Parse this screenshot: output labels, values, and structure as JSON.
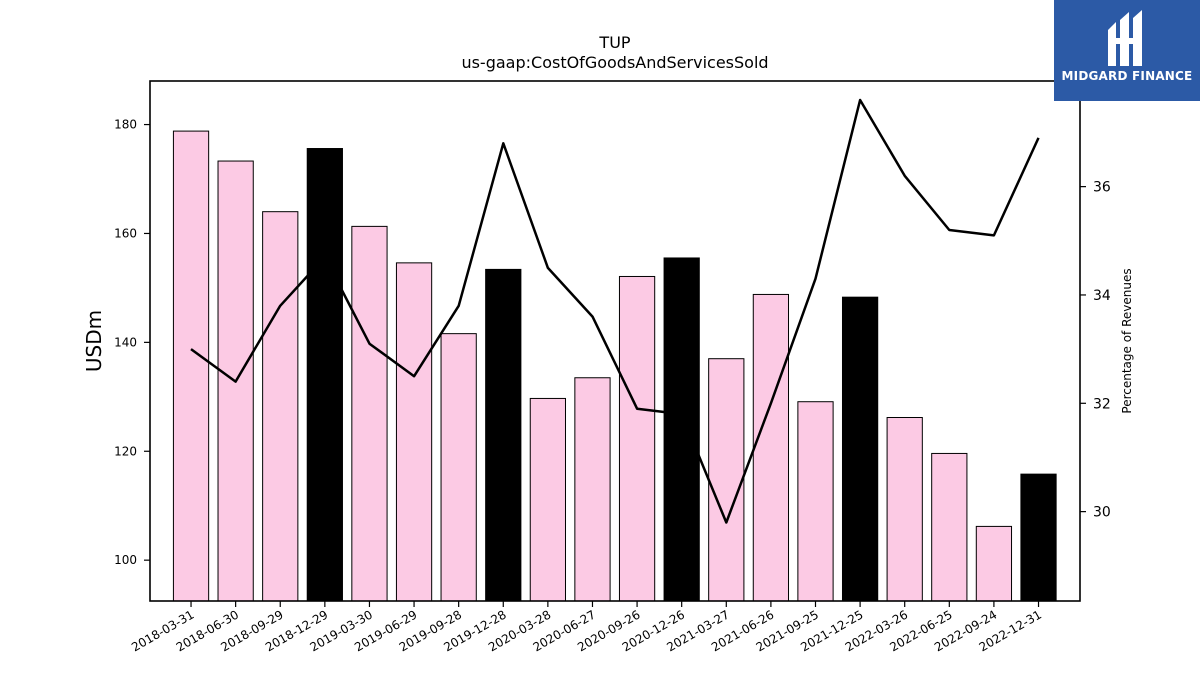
{
  "chart_data": {
    "type": "bar",
    "title": "TUP",
    "subtitle": "us-gaap:CostOfGoodsAndServicesSold",
    "ylabel": "USDm",
    "y2label": "Percentage of Revenues",
    "categories": [
      "2018-03-31",
      "2018-06-30",
      "2018-09-29",
      "2018-12-29",
      "2019-03-30",
      "2019-06-29",
      "2019-09-28",
      "2019-12-28",
      "2020-03-28",
      "2020-06-27",
      "2020-09-26",
      "2020-12-26",
      "2021-03-27",
      "2021-06-26",
      "2021-09-25",
      "2021-12-25",
      "2022-03-26",
      "2022-06-25",
      "2022-09-24",
      "2022-12-31"
    ],
    "series": [
      {
        "values": [
          178.8,
          173.3,
          164.0,
          175.6,
          161.3,
          154.6,
          141.6,
          153.4,
          129.7,
          133.5,
          152.1,
          155.5,
          137.0,
          148.8,
          129.1,
          148.3,
          126.2,
          119.6,
          106.2,
          115.8
        ]
      },
      {
        "axis": "right",
        "values": [
          33.0,
          32.4,
          33.8,
          34.7,
          33.1,
          32.5,
          33.8,
          36.8,
          34.5,
          33.6,
          31.9,
          31.8,
          29.8,
          32.0,
          34.3,
          37.6,
          36.2,
          35.2,
          35.1,
          36.9
        ]
      }
    ],
    "quarter_end_color": "#000000",
    "bar_color": "#fccae4",
    "line_color": "#000000",
    "ylim": [
      92.5,
      188
    ],
    "yticks": [
      100,
      120,
      140,
      160,
      180
    ],
    "y2lim": [
      28.35,
      37.95
    ],
    "y2ticks": [
      30,
      32,
      34,
      36
    ],
    "grid": false
  },
  "logo": {
    "text": "MIDGARD FINANCE"
  }
}
